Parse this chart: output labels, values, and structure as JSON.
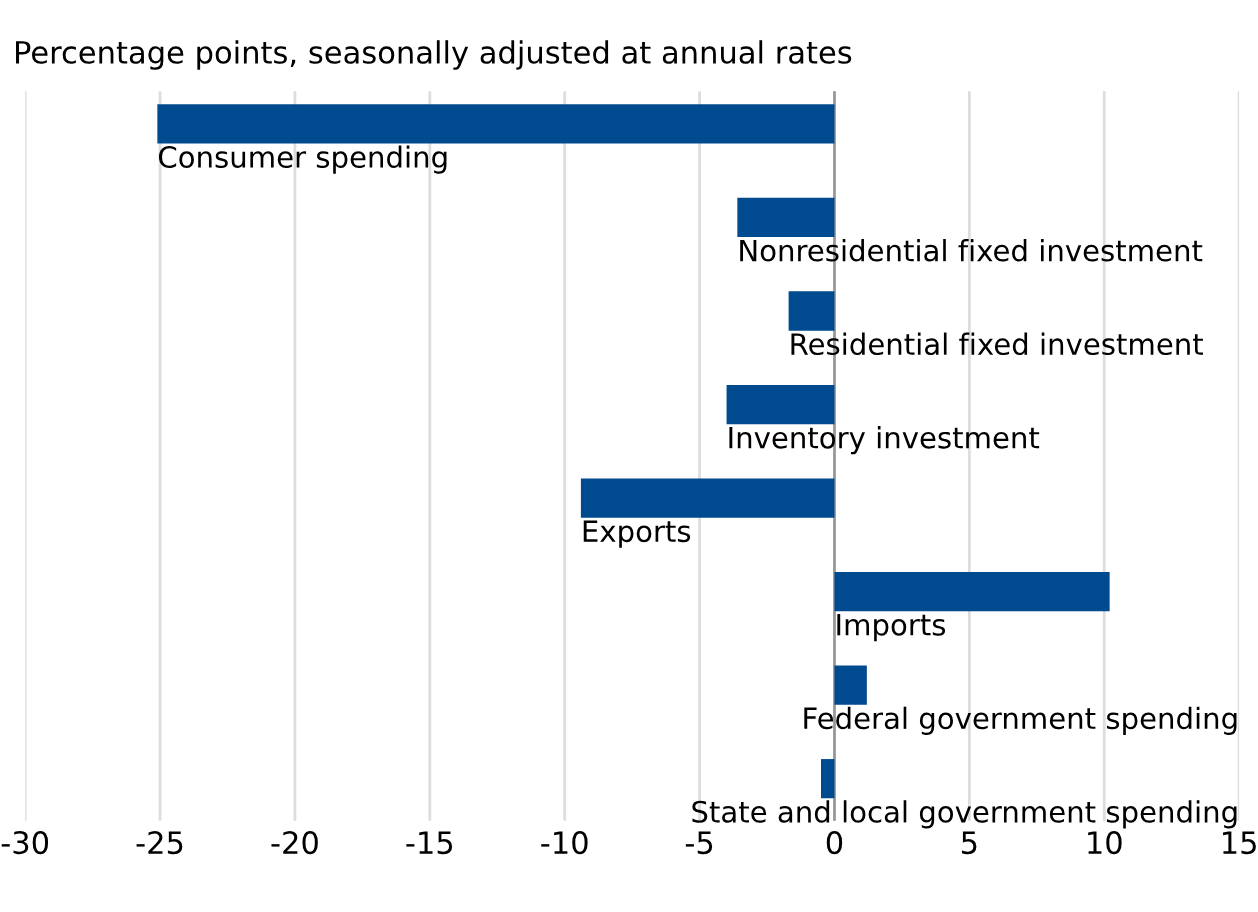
{
  "chart_data": {
    "type": "bar",
    "orientation": "horizontal",
    "title": "Percentage points, seasonally adjusted at annual rates",
    "categories": [
      "Consumer spending",
      "Nonresidential fixed investment",
      "Residential fixed investment",
      "Inventory investment",
      "Exports",
      "Imports",
      "Federal government spending",
      "State and local government spending"
    ],
    "values": [
      -25.1,
      -3.6,
      -1.7,
      -4.0,
      -9.4,
      10.2,
      1.2,
      -0.5
    ],
    "color": "#004a8f",
    "xlim": [
      -30,
      15
    ],
    "xticks": [
      -30,
      -25,
      -20,
      -15,
      -10,
      -5,
      0,
      5,
      10,
      15
    ],
    "grid": "x",
    "legend": false
  }
}
